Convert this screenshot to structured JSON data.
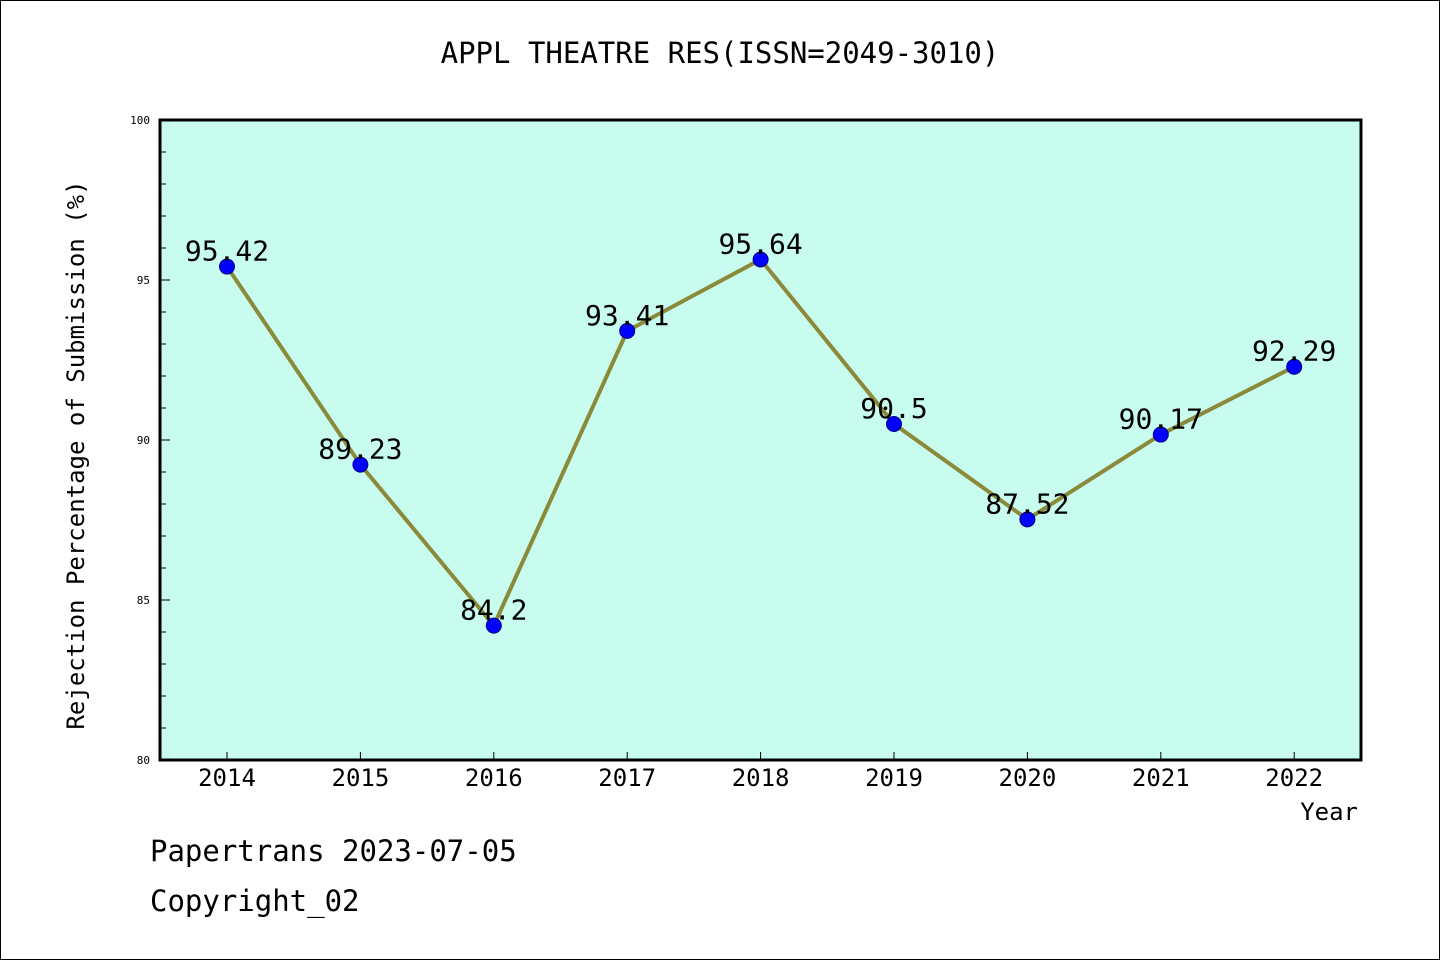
{
  "chart_data": {
    "type": "line",
    "title": "APPL THEATRE RES(ISSN=2049-3010)",
    "xlabel": "Year",
    "ylabel": "Rejection Percentage of Submission (%)",
    "x": [
      "2014",
      "2015",
      "2016",
      "2017",
      "2018",
      "2019",
      "2020",
      "2021",
      "2022"
    ],
    "values": [
      95.42,
      89.23,
      84.2,
      93.41,
      95.64,
      90.5,
      87.52,
      90.17,
      92.29
    ],
    "data_labels": [
      "95.42",
      "89.23",
      "84.2",
      "93.41",
      "95.64",
      "90.5",
      "87.52",
      "90.17",
      "92.29"
    ],
    "ylim": [
      80,
      100
    ],
    "yticks": [
      "80",
      "85",
      "90",
      "95",
      "100"
    ],
    "grid": false,
    "colors": {
      "plot_background": "#c8fcee",
      "line": "#8b8a3a",
      "marker": "#0000ff"
    }
  },
  "footer": {
    "date_text": "Papertrans 2023-07-05",
    "copyright_text": "Copyright_02"
  }
}
